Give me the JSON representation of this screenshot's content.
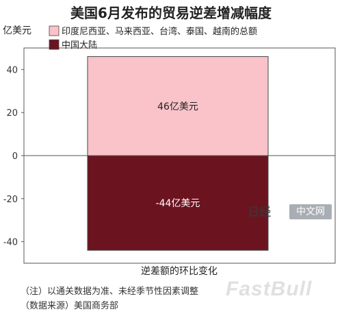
{
  "chart_data": {
    "type": "bar",
    "title": "美国6月发布的贸易逆差增减幅度",
    "ylabel": "亿美元",
    "xlabel": "逆差额的环比变化",
    "ylim": [
      -50,
      50
    ],
    "yticks": [
      40,
      20,
      0,
      -20,
      -40
    ],
    "stacked": true,
    "legend_position": "top-left",
    "series": [
      {
        "name": "印度尼西亚、马来西亚、台湾、泰国、越南的总额",
        "value": 46,
        "label": "46亿美元",
        "color": "#f9c3c9"
      },
      {
        "name": "中国大陆",
        "value": -44,
        "label": "-44亿美元",
        "color": "#6b1420"
      }
    ]
  },
  "notes": {
    "note1": "（注）以通关数据为准、未经季节性因素调整",
    "note2": "（数据来源）美国商务部"
  },
  "watermarks": {
    "logo_text": "日经",
    "badge_text": "中文网",
    "fastbull_text": "FastBull"
  }
}
